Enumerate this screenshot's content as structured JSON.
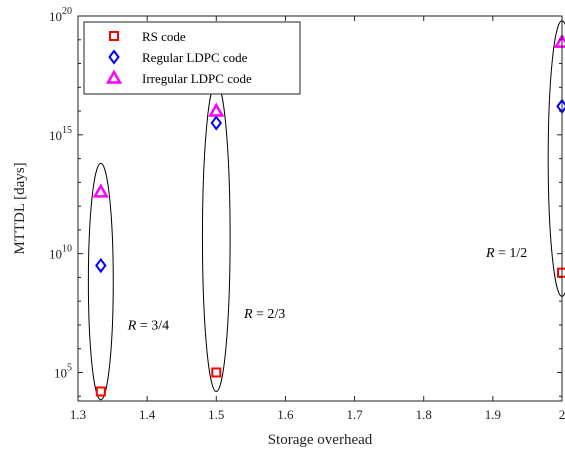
{
  "chart_data": {
    "type": "scatter",
    "xlabel": "Storage overhead",
    "ylabel": "MTTDL [days]",
    "xlim": [
      1.3,
      2.0
    ],
    "ylim_log10": [
      3.8,
      20
    ],
    "yscale": "log",
    "x_ticks": [
      "1.3",
      "1.4",
      "1.5",
      "1.6",
      "1.7",
      "1.8",
      "1.9",
      "2"
    ],
    "y_ticks": [
      {
        "base": "10",
        "exp": "5",
        "log10": 5
      },
      {
        "base": "10",
        "exp": "10",
        "log10": 10
      },
      {
        "base": "10",
        "exp": "15",
        "log10": 15
      },
      {
        "base": "10",
        "exp": "20",
        "log10": 20
      }
    ],
    "legend_position": "top-left",
    "grid": false,
    "series": [
      {
        "name": "RS code",
        "marker": "square",
        "color": "#ff0000",
        "points": [
          {
            "x": 1.333,
            "log10_y": 4.2
          },
          {
            "x": 1.5,
            "log10_y": 5.0
          },
          {
            "x": 2.0,
            "log10_y": 9.2
          }
        ]
      },
      {
        "name": "Regular LDPC code",
        "marker": "diamond",
        "color": "#0000ff",
        "points": [
          {
            "x": 1.333,
            "log10_y": 9.5
          },
          {
            "x": 1.5,
            "log10_y": 15.5
          },
          {
            "x": 2.0,
            "log10_y": 16.2
          }
        ]
      },
      {
        "name": "Irregular LDPC code",
        "marker": "triangle",
        "color": "#ff00ff",
        "points": [
          {
            "x": 1.333,
            "log10_y": 12.6
          },
          {
            "x": 1.5,
            "log10_y": 16.0
          },
          {
            "x": 2.0,
            "log10_y": 18.9
          }
        ]
      }
    ],
    "annotations": [
      {
        "text": "R = 3/4",
        "x": 1.372,
        "log10_y": 6.8
      },
      {
        "text": "R = 2/3",
        "x": 1.54,
        "log10_y": 7.3
      },
      {
        "text": "R = 1/2",
        "x": 1.89,
        "log10_y": 9.85
      }
    ],
    "ellipses": [
      {
        "x": 1.333,
        "log10_from": 3.85,
        "log10_to": 13.8,
        "dx": 0.018
      },
      {
        "x": 1.5,
        "log10_from": 4.2,
        "log10_to": 17.2,
        "dx": 0.02
      },
      {
        "x": 2.0,
        "log10_from": 8.2,
        "log10_to": 19.8,
        "dx": 0.02
      }
    ]
  }
}
